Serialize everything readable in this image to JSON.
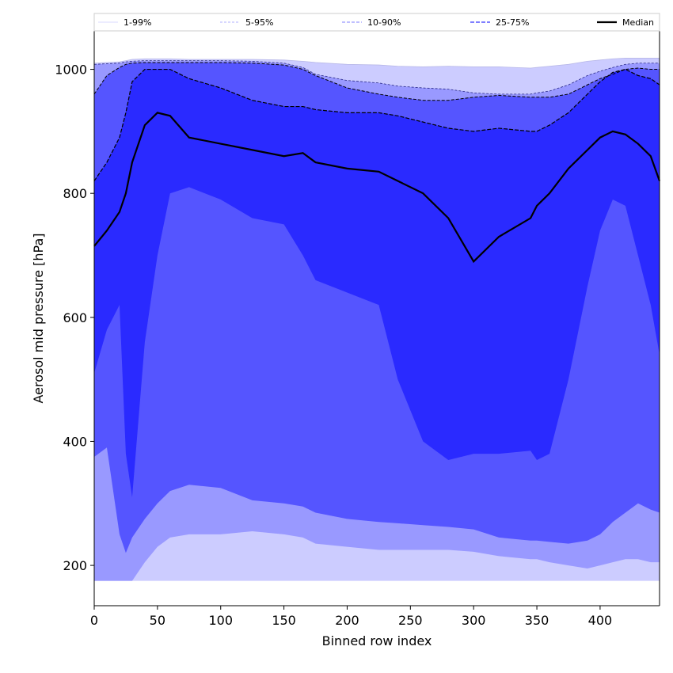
{
  "chart_data": {
    "type": "area",
    "xlabel": "Binned row index",
    "ylabel": "Aerosol mid pressure [hPa]",
    "xlim": [
      0,
      447
    ],
    "ylim": [
      135,
      1062
    ],
    "x_ticks": [
      0,
      50,
      100,
      150,
      200,
      250,
      300,
      350,
      400
    ],
    "y_ticks": [
      200,
      400,
      600,
      800,
      1000
    ],
    "grid": false,
    "legend_position": "top",
    "colors": {
      "band_1_99": "#ccccff",
      "band_5_95": "#9999ff",
      "band_10_90": "#5555ff",
      "band_25_75": "#2a2aff",
      "median": "#000000"
    },
    "x": [
      0,
      10,
      20,
      25,
      30,
      40,
      50,
      60,
      75,
      100,
      125,
      150,
      165,
      175,
      200,
      225,
      240,
      260,
      280,
      300,
      320,
      345,
      350,
      360,
      375,
      390,
      400,
      410,
      420,
      430,
      440,
      447
    ],
    "series": [
      {
        "name": "1-99%",
        "style": "thin-solid",
        "lower": [
          175,
          175,
          175,
          175,
          175,
          175,
          175,
          175,
          175,
          175,
          175,
          175,
          175,
          175,
          175,
          175,
          175,
          175,
          175,
          175,
          175,
          175,
          175,
          175,
          175,
          175,
          175,
          175,
          175,
          175,
          175,
          175
        ],
        "upper": [
          1010,
          1011,
          1012,
          1014,
          1016,
          1017,
          1017,
          1017,
          1016,
          1016,
          1016,
          1015,
          1013,
          1011,
          1008,
          1007,
          1005,
          1004,
          1005,
          1004,
          1004,
          1002,
          1003,
          1005,
          1008,
          1013,
          1015,
          1017,
          1018,
          1018,
          1018,
          1018
        ]
      },
      {
        "name": "5-95%",
        "style": "thin-dashed",
        "lower": [
          175,
          175,
          175,
          175,
          175,
          205,
          230,
          245,
          250,
          250,
          255,
          250,
          245,
          235,
          230,
          225,
          225,
          225,
          225,
          222,
          215,
          210,
          210,
          205,
          200,
          195,
          200,
          205,
          210,
          210,
          205,
          205
        ],
        "upper": [
          1008,
          1009,
          1010,
          1012,
          1013,
          1014,
          1014,
          1014,
          1014,
          1014,
          1013,
          1010,
          1003,
          992,
          982,
          978,
          973,
          970,
          968,
          962,
          960,
          960,
          962,
          965,
          975,
          990,
          997,
          1003,
          1008,
          1010,
          1010,
          1010
        ]
      },
      {
        "name": "10-90%",
        "style": "dashed",
        "lower": [
          375,
          390,
          250,
          220,
          245,
          275,
          300,
          320,
          330,
          325,
          305,
          300,
          295,
          285,
          275,
          270,
          268,
          265,
          262,
          258,
          245,
          240,
          240,
          238,
          235,
          240,
          250,
          270,
          285,
          300,
          290,
          285
        ],
        "upper": [
          960,
          990,
          1003,
          1008,
          1010,
          1011,
          1011,
          1011,
          1011,
          1011,
          1010,
          1007,
          1000,
          990,
          970,
          960,
          955,
          950,
          950,
          955,
          958,
          955,
          955,
          955,
          960,
          975,
          985,
          992,
          1000,
          1002,
          1000,
          1000
        ]
      },
      {
        "name": "25-75%",
        "style": "dashed",
        "lower": [
          510,
          580,
          620,
          380,
          310,
          560,
          700,
          800,
          810,
          790,
          760,
          750,
          700,
          660,
          640,
          620,
          500,
          400,
          370,
          380,
          380,
          385,
          370,
          380,
          500,
          650,
          740,
          790,
          780,
          700,
          620,
          540
        ]
      }
    ],
    "median_band_upper": [
      820,
      850,
      890,
      930,
      980,
      1000,
      1000,
      1000,
      985,
      970,
      950,
      940,
      940,
      935,
      930,
      930,
      925,
      915,
      905,
      900,
      905,
      900,
      900,
      910,
      930,
      960,
      980,
      995,
      1000,
      990,
      985,
      975
    ],
    "median": {
      "name": "Median",
      "style": "solid",
      "values": [
        715,
        740,
        770,
        800,
        850,
        910,
        930,
        925,
        890,
        880,
        870,
        860,
        865,
        850,
        840,
        835,
        820,
        800,
        760,
        690,
        730,
        760,
        780,
        800,
        840,
        870,
        890,
        900,
        895,
        880,
        860,
        820
      ]
    },
    "legend": [
      "1-99%",
      "5-95%",
      "10-90%",
      "25-75%",
      "Median"
    ]
  }
}
